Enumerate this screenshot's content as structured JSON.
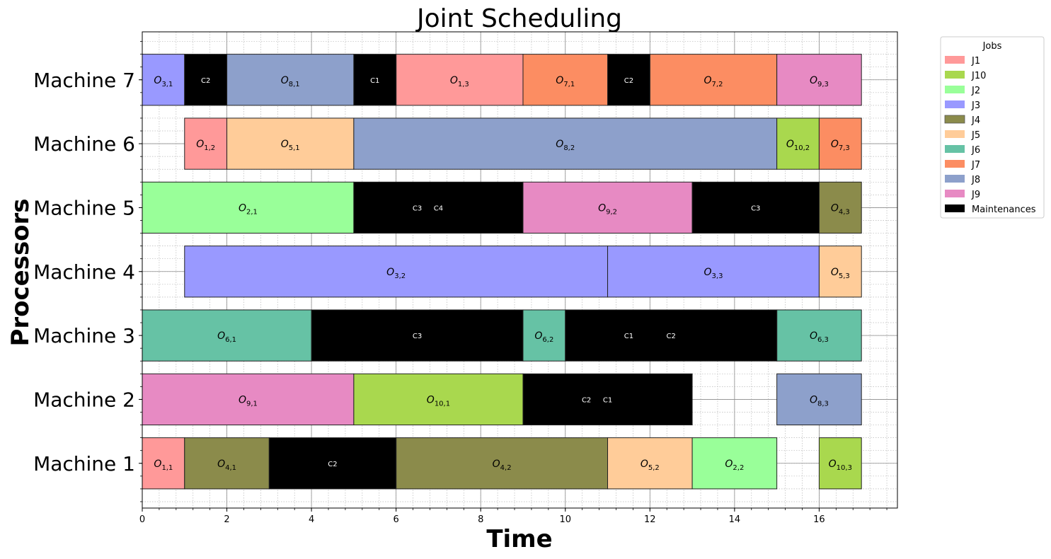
{
  "chart_data": {
    "type": "gantt",
    "title": "Joint Scheduling",
    "xlabel": "Time",
    "ylabel": "Processors",
    "xlim": [
      0,
      17.85
    ],
    "xticks": [
      0,
      2,
      4,
      6,
      8,
      10,
      12,
      14,
      16
    ],
    "machines": [
      "Machine 1",
      "Machine 2",
      "Machine 3",
      "Machine 4",
      "Machine 5",
      "Machine 6",
      "Machine 7"
    ],
    "legend": {
      "title": "Jobs",
      "position": "outside-top-right",
      "items": [
        {
          "label": "J1",
          "color": "#ff9999"
        },
        {
          "label": "J10",
          "color": "#a9d84e"
        },
        {
          "label": "J2",
          "color": "#99ff99"
        },
        {
          "label": "J3",
          "color": "#9999ff"
        },
        {
          "label": "J4",
          "color": "#8b8b4b"
        },
        {
          "label": "J5",
          "color": "#ffcc99"
        },
        {
          "label": "J6",
          "color": "#66c2a5"
        },
        {
          "label": "J7",
          "color": "#fc8d62"
        },
        {
          "label": "J8",
          "color": "#8da0cb"
        },
        {
          "label": "J9",
          "color": "#e78ac3"
        },
        {
          "label": "Maintenances",
          "color": "#000000"
        }
      ]
    },
    "operations": [
      {
        "machine": 1,
        "start": 0,
        "end": 1,
        "job": "J1",
        "op": 1
      },
      {
        "machine": 1,
        "start": 1,
        "end": 3,
        "job": "J4",
        "op": 1
      },
      {
        "machine": 1,
        "start": 6,
        "end": 11,
        "job": "J4",
        "op": 2
      },
      {
        "machine": 1,
        "start": 11,
        "end": 13,
        "job": "J5",
        "op": 2
      },
      {
        "machine": 1,
        "start": 13,
        "end": 15,
        "job": "J2",
        "op": 2
      },
      {
        "machine": 1,
        "start": 16,
        "end": 17,
        "job": "J10",
        "op": 3
      },
      {
        "machine": 2,
        "start": 0,
        "end": 5,
        "job": "J9",
        "op": 1
      },
      {
        "machine": 2,
        "start": 5,
        "end": 9,
        "job": "J10",
        "op": 1
      },
      {
        "machine": 2,
        "start": 15,
        "end": 17,
        "job": "J8",
        "op": 3
      },
      {
        "machine": 3,
        "start": 0,
        "end": 4,
        "job": "J6",
        "op": 1
      },
      {
        "machine": 3,
        "start": 9,
        "end": 10,
        "job": "J6",
        "op": 2
      },
      {
        "machine": 3,
        "start": 15,
        "end": 17,
        "job": "J6",
        "op": 3
      },
      {
        "machine": 4,
        "start": 1,
        "end": 11,
        "job": "J3",
        "op": 2
      },
      {
        "machine": 4,
        "start": 11,
        "end": 16,
        "job": "J3",
        "op": 3
      },
      {
        "machine": 4,
        "start": 16,
        "end": 17,
        "job": "J5",
        "op": 3
      },
      {
        "machine": 5,
        "start": 0,
        "end": 5,
        "job": "J2",
        "op": 1
      },
      {
        "machine": 5,
        "start": 9,
        "end": 13,
        "job": "J9",
        "op": 2
      },
      {
        "machine": 5,
        "start": 16,
        "end": 17,
        "job": "J4",
        "op": 3
      },
      {
        "machine": 6,
        "start": 1,
        "end": 2,
        "job": "J1",
        "op": 2
      },
      {
        "machine": 6,
        "start": 2,
        "end": 5,
        "job": "J5",
        "op": 1
      },
      {
        "machine": 6,
        "start": 5,
        "end": 15,
        "job": "J8",
        "op": 2
      },
      {
        "machine": 6,
        "start": 15,
        "end": 16,
        "job": "J10",
        "op": 2
      },
      {
        "machine": 6,
        "start": 16,
        "end": 17,
        "job": "J7",
        "op": 3
      },
      {
        "machine": 7,
        "start": 0,
        "end": 1,
        "job": "J3",
        "op": 1
      },
      {
        "machine": 7,
        "start": 2,
        "end": 5,
        "job": "J8",
        "op": 1
      },
      {
        "machine": 7,
        "start": 6,
        "end": 9,
        "job": "J1",
        "op": 3
      },
      {
        "machine": 7,
        "start": 9,
        "end": 11,
        "job": "J7",
        "op": 1
      },
      {
        "machine": 7,
        "start": 12,
        "end": 15,
        "job": "J7",
        "op": 2
      },
      {
        "machine": 7,
        "start": 15,
        "end": 17,
        "job": "J9",
        "op": 3
      }
    ],
    "maintenances": [
      {
        "machine": 1,
        "start": 3,
        "end": 6,
        "labels": [
          {
            "text": "C2",
            "at": 4.5
          }
        ]
      },
      {
        "machine": 2,
        "start": 9,
        "end": 13,
        "labels": [
          {
            "text": "C2",
            "at": 10.5
          },
          {
            "text": "C1",
            "at": 11
          }
        ]
      },
      {
        "machine": 3,
        "start": 4,
        "end": 9,
        "labels": [
          {
            "text": "C3",
            "at": 6.5
          }
        ]
      },
      {
        "machine": 3,
        "start": 10,
        "end": 15,
        "labels": [
          {
            "text": "C1",
            "at": 11.5
          },
          {
            "text": "C2",
            "at": 12.5
          }
        ]
      },
      {
        "machine": 5,
        "start": 5,
        "end": 9,
        "labels": [
          {
            "text": "C3",
            "at": 6.5
          },
          {
            "text": "C4",
            "at": 7
          }
        ]
      },
      {
        "machine": 5,
        "start": 13,
        "end": 16,
        "labels": [
          {
            "text": "C3",
            "at": 14.5
          }
        ]
      },
      {
        "machine": 7,
        "start": 1,
        "end": 2,
        "labels": [
          {
            "text": "C2",
            "at": 1.5
          }
        ]
      },
      {
        "machine": 7,
        "start": 5,
        "end": 6,
        "labels": [
          {
            "text": "C1",
            "at": 5.5
          }
        ]
      },
      {
        "machine": 7,
        "start": 11,
        "end": 12,
        "labels": [
          {
            "text": "C2",
            "at": 11.5
          }
        ]
      }
    ]
  }
}
